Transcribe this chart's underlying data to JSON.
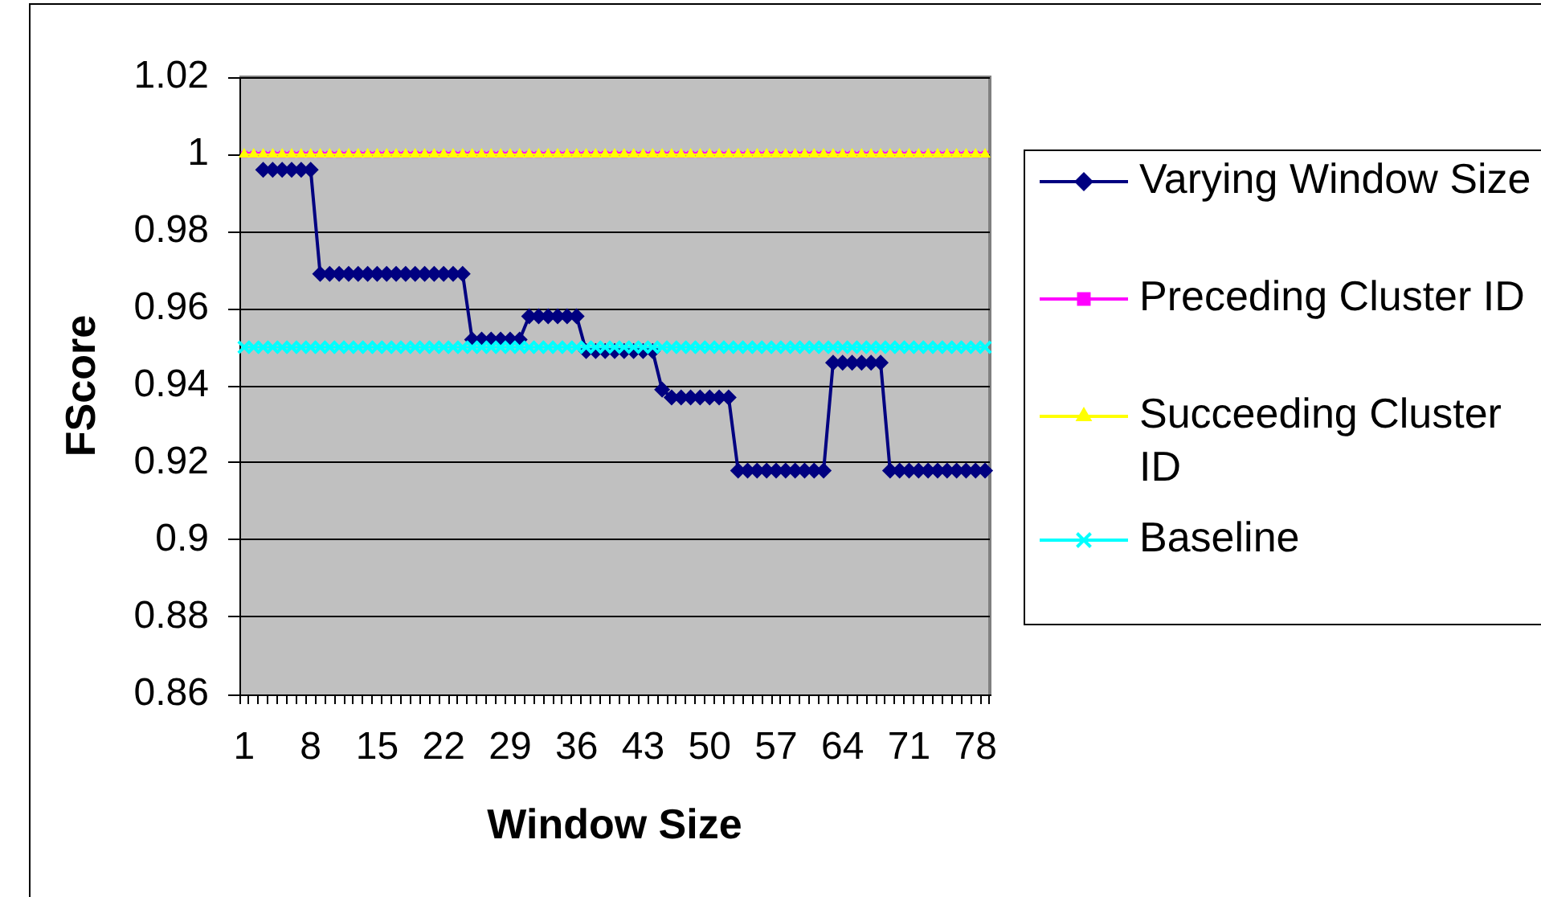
{
  "chart_data": {
    "type": "line",
    "xlabel": "Window Size",
    "ylabel": "FScore",
    "categories": [
      "1",
      null,
      null,
      null,
      null,
      null,
      null,
      "8",
      null,
      null,
      null,
      null,
      null,
      null,
      "15",
      null,
      null,
      null,
      null,
      null,
      null,
      "22",
      null,
      null,
      null,
      null,
      null,
      null,
      "29",
      null,
      null,
      null,
      null,
      null,
      null,
      "36",
      null,
      null,
      null,
      null,
      null,
      null,
      "43",
      null,
      null,
      null,
      null,
      null,
      null,
      "50",
      null,
      null,
      null,
      null,
      null,
      null,
      "57",
      null,
      null,
      null,
      null,
      null,
      null,
      "64",
      null,
      null,
      null,
      null,
      null,
      null,
      "71",
      null,
      null,
      null,
      null,
      null,
      null,
      "78",
      null
    ],
    "ylim": [
      0.86,
      1.02
    ],
    "yticks": [
      0.86,
      0.88,
      0.9,
      0.92,
      0.94,
      0.96,
      0.98,
      1,
      1.02
    ],
    "grid": "y",
    "legend": "right",
    "series": [
      {
        "name": "Varying Window Size",
        "color": "#000080",
        "marker": "diamond",
        "values": [
          null,
          null,
          0.996,
          0.996,
          0.996,
          0.996,
          0.996,
          0.996,
          0.969,
          0.969,
          0.969,
          0.969,
          0.969,
          0.969,
          0.969,
          0.969,
          0.969,
          0.969,
          0.969,
          0.969,
          0.969,
          0.969,
          0.969,
          0.969,
          0.952,
          0.952,
          0.952,
          0.952,
          0.952,
          0.952,
          0.958,
          0.958,
          0.958,
          0.958,
          0.958,
          0.958,
          0.949,
          0.949,
          0.949,
          0.949,
          0.949,
          0.949,
          0.949,
          0.949,
          0.939,
          0.937,
          0.937,
          0.937,
          0.937,
          0.937,
          0.937,
          0.937,
          0.918,
          0.918,
          0.918,
          0.918,
          0.918,
          0.918,
          0.918,
          0.918,
          0.918,
          0.918,
          0.946,
          0.946,
          0.946,
          0.946,
          0.946,
          0.946,
          0.918,
          0.918,
          0.918,
          0.918,
          0.918,
          0.918,
          0.918,
          0.918,
          0.918,
          0.918,
          0.918
        ]
      },
      {
        "name": "Preceding Cluster ID",
        "color": "#ff00ff",
        "marker": "square",
        "values": [
          1,
          1,
          1,
          1,
          1,
          1,
          1,
          1,
          1,
          1,
          1,
          1,
          1,
          1,
          1,
          1,
          1,
          1,
          1,
          1,
          1,
          1,
          1,
          1,
          1,
          1,
          1,
          1,
          1,
          1,
          1,
          1,
          1,
          1,
          1,
          1,
          1,
          1,
          1,
          1,
          1,
          1,
          1,
          1,
          1,
          1,
          1,
          1,
          1,
          1,
          1,
          1,
          1,
          1,
          1,
          1,
          1,
          1,
          1,
          1,
          1,
          1,
          1,
          1,
          1,
          1,
          1,
          1,
          1,
          1,
          1,
          1,
          1,
          1,
          1,
          1,
          1,
          1,
          1
        ]
      },
      {
        "name": "Succeeding Cluster ID",
        "color": "#ffff00",
        "marker": "triangle",
        "values": [
          1,
          1,
          1,
          1,
          1,
          1,
          1,
          1,
          1,
          1,
          1,
          1,
          1,
          1,
          1,
          1,
          1,
          1,
          1,
          1,
          1,
          1,
          1,
          1,
          1,
          1,
          1,
          1,
          1,
          1,
          1,
          1,
          1,
          1,
          1,
          1,
          1,
          1,
          1,
          1,
          1,
          1,
          1,
          1,
          1,
          1,
          1,
          1,
          1,
          1,
          1,
          1,
          1,
          1,
          1,
          1,
          1,
          1,
          1,
          1,
          1,
          1,
          1,
          1,
          1,
          1,
          1,
          1,
          1,
          1,
          1,
          1,
          1,
          1,
          1,
          1,
          1,
          1,
          1
        ]
      },
      {
        "name": "Baseline",
        "color": "#00ffff",
        "marker": "cross",
        "values": [
          0.95,
          0.95,
          0.95,
          0.95,
          0.95,
          0.95,
          0.95,
          0.95,
          0.95,
          0.95,
          0.95,
          0.95,
          0.95,
          0.95,
          0.95,
          0.95,
          0.95,
          0.95,
          0.95,
          0.95,
          0.95,
          0.95,
          0.95,
          0.95,
          0.95,
          0.95,
          0.95,
          0.95,
          0.95,
          0.95,
          0.95,
          0.95,
          0.95,
          0.95,
          0.95,
          0.95,
          0.95,
          0.95,
          0.95,
          0.95,
          0.95,
          0.95,
          0.95,
          0.95,
          0.95,
          0.95,
          0.95,
          0.95,
          0.95,
          0.95,
          0.95,
          0.95,
          0.95,
          0.95,
          0.95,
          0.95,
          0.95,
          0.95,
          0.95,
          0.95,
          0.95,
          0.95,
          0.95,
          0.95,
          0.95,
          0.95,
          0.95,
          0.95,
          0.95,
          0.95,
          0.95,
          0.95,
          0.95,
          0.95,
          0.95,
          0.95,
          0.95,
          0.95,
          0.95
        ]
      }
    ]
  }
}
